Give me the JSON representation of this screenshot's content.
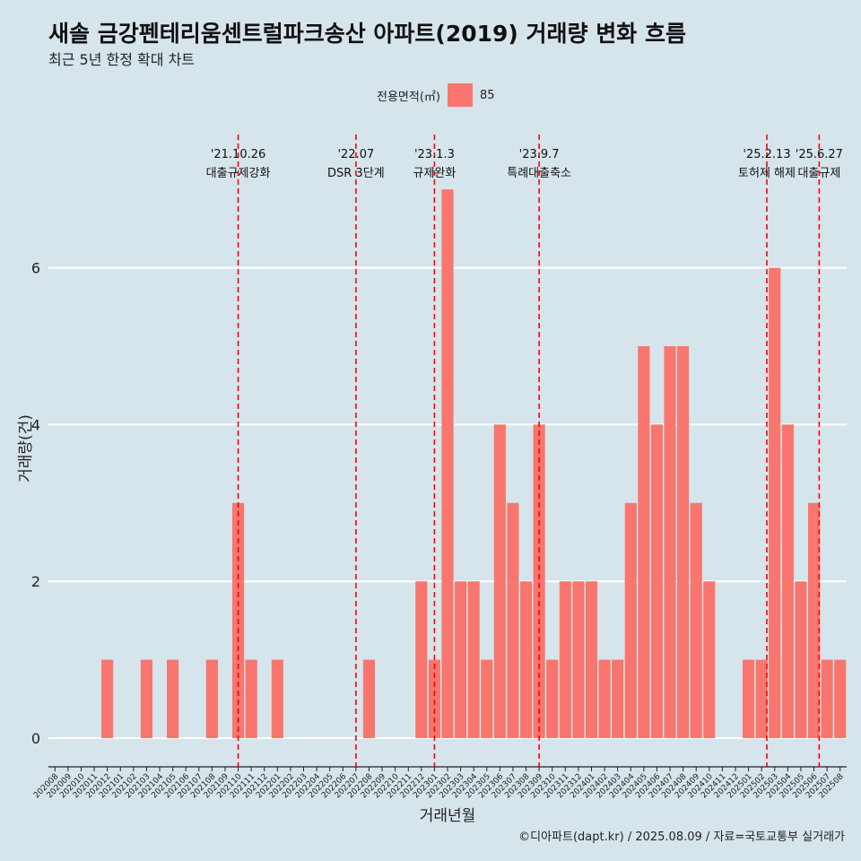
{
  "title": "새솔 금강펜테리움센트럴파크송산 아파트(2019) 거래량 변화 흐름",
  "subtitle": "최근 5년 한정 확대 차트",
  "caption": "©디아파트(dapt.kr) / 2025.08.09 / 자료=국토교통부 실거래가",
  "legend": {
    "title": "전용면적(㎡)",
    "items": [
      "85"
    ]
  },
  "colors": {
    "bar": "#f8766d",
    "background": "#d6e4ec",
    "grid": "#ffffff",
    "event_line": "#ff0000"
  },
  "chart_data": {
    "type": "bar",
    "xlabel": "거래년월",
    "ylabel": "거래량(건)",
    "ylim": [
      0,
      7
    ],
    "yticks": [
      0,
      2,
      4,
      6
    ],
    "grid": "horizontal",
    "legend_position": "top",
    "categories": [
      "202008",
      "202009",
      "202010",
      "202011",
      "202012",
      "202101",
      "202102",
      "202103",
      "202104",
      "202105",
      "202106",
      "202107",
      "202108",
      "202109",
      "202110",
      "202111",
      "202112",
      "202201",
      "202202",
      "202203",
      "202204",
      "202205",
      "202206",
      "202207",
      "202208",
      "202209",
      "202210",
      "202211",
      "202212",
      "202301",
      "202302",
      "202303",
      "202304",
      "202305",
      "202306",
      "202307",
      "202308",
      "202309",
      "202310",
      "202311",
      "202312",
      "202401",
      "202402",
      "202403",
      "202404",
      "202405",
      "202406",
      "202407",
      "202408",
      "202409",
      "202410",
      "202411",
      "202412",
      "202501",
      "202502",
      "202503",
      "202504",
      "202505",
      "202506",
      "202507",
      "202508"
    ],
    "series": [
      {
        "name": "85",
        "values": [
          0,
          0,
          0,
          0,
          1,
          0,
          0,
          1,
          0,
          1,
          0,
          0,
          1,
          0,
          3,
          1,
          0,
          1,
          0,
          0,
          0,
          0,
          0,
          0,
          1,
          0,
          0,
          0,
          2,
          1,
          7,
          2,
          2,
          1,
          4,
          3,
          2,
          4,
          1,
          2,
          2,
          2,
          1,
          1,
          3,
          5,
          4,
          5,
          5,
          3,
          2,
          0,
          0,
          1,
          1,
          6,
          4,
          2,
          3,
          1,
          1
        ]
      }
    ],
    "events": [
      {
        "date": "'21.10.26",
        "label": "대출규제강화",
        "x": 14.0
      },
      {
        "date": "'22.07",
        "label": "DSR 3단계",
        "x": 23.0
      },
      {
        "date": "'23.1.3",
        "label": "규제완화",
        "x": 29.0
      },
      {
        "date": "'23.9.7",
        "label": "특례대출축소",
        "x": 37.0
      },
      {
        "date": "'25.2.13",
        "label": "토허제 해제",
        "x": 54.4
      },
      {
        "date": "'25.6.27",
        "label": "대출규제",
        "x": 58.4
      }
    ]
  }
}
